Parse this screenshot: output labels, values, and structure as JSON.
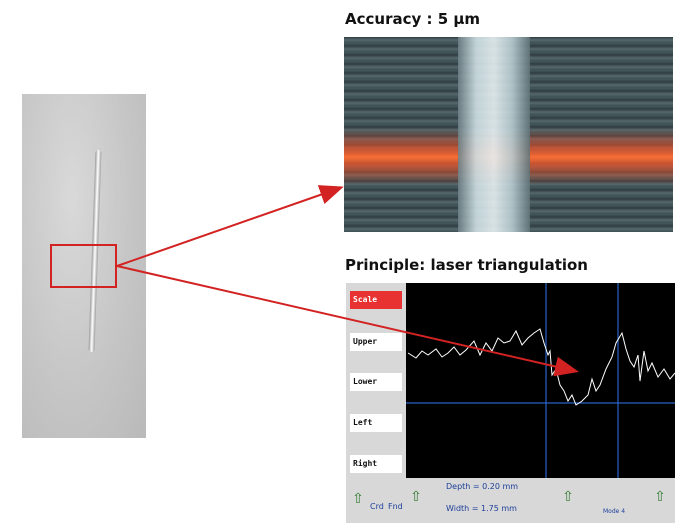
{
  "labels": {
    "accuracy": "Accuracy : 5 µm",
    "principle": "Principle: laser triangulation"
  },
  "profile_panel": {
    "buttons": [
      "Scale",
      "Upper",
      "Lower",
      "Left",
      "Right"
    ],
    "depth": "Depth = 0.20 mm",
    "width": "Width = 1.75 mm",
    "bar_label_1": "Crd",
    "bar_label_2": "Fnd",
    "mode": "Mode 4"
  },
  "colors": {
    "arrow": "#d32222",
    "trace": "#ffffff",
    "screen": "#000000"
  }
}
